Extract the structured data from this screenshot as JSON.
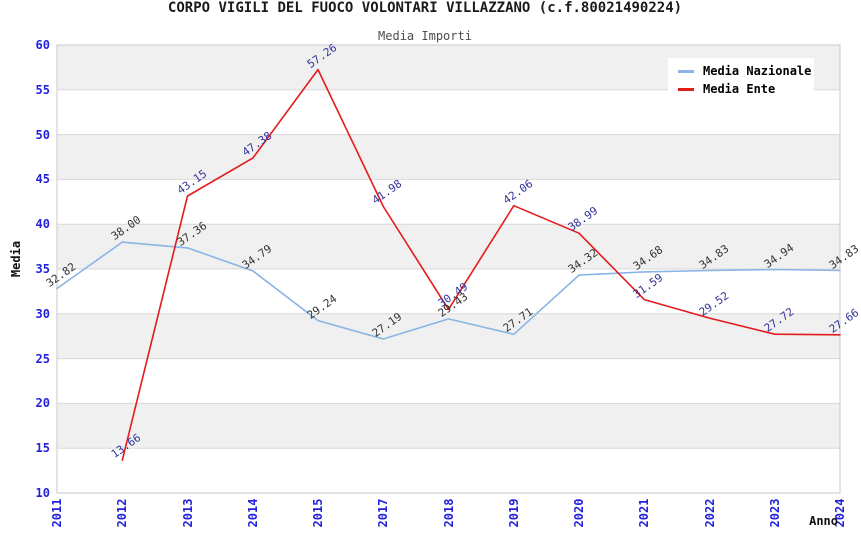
{
  "chart_data": {
    "type": "line",
    "title": "CORPO VIGILI DEL FUOCO VOLONTARI VILLAZZANO (c.f.80021490224)",
    "subtitle": "Media Importi",
    "xlabel": "Anno",
    "ylabel": "Media",
    "ylim": [
      10,
      60
    ],
    "ytick_step": 5,
    "grid": "horizontal-bands-alternating",
    "legend_position": "top-right",
    "categories": [
      "2011",
      "2012",
      "2013",
      "2014",
      "2015",
      "2017",
      "2018",
      "2019",
      "2020",
      "2021",
      "2022",
      "2023",
      "2024"
    ],
    "series": [
      {
        "name": "Media Nazionale",
        "color": "#89b5e5",
        "label_color": "#333333",
        "values": [
          32.82,
          38.0,
          37.36,
          34.79,
          29.24,
          27.19,
          29.43,
          27.71,
          34.32,
          34.68,
          34.83,
          34.94,
          34.83
        ]
      },
      {
        "name": "Media Ente",
        "color": "#e41b1b",
        "label_color": "#333399",
        "values": [
          null,
          13.66,
          43.15,
          47.38,
          57.26,
          41.98,
          30.49,
          42.06,
          38.99,
          31.59,
          29.52,
          27.72,
          27.66
        ]
      }
    ],
    "colors": {
      "band_gray": "#f0f0f0",
      "band_white": "#ffffff",
      "gridline": "#d8d8d8",
      "plot_border": "#c9c9c9",
      "tick_label": "#2222dd",
      "title": "#1a1a1a",
      "subtitle": "#4d4d4d"
    }
  }
}
